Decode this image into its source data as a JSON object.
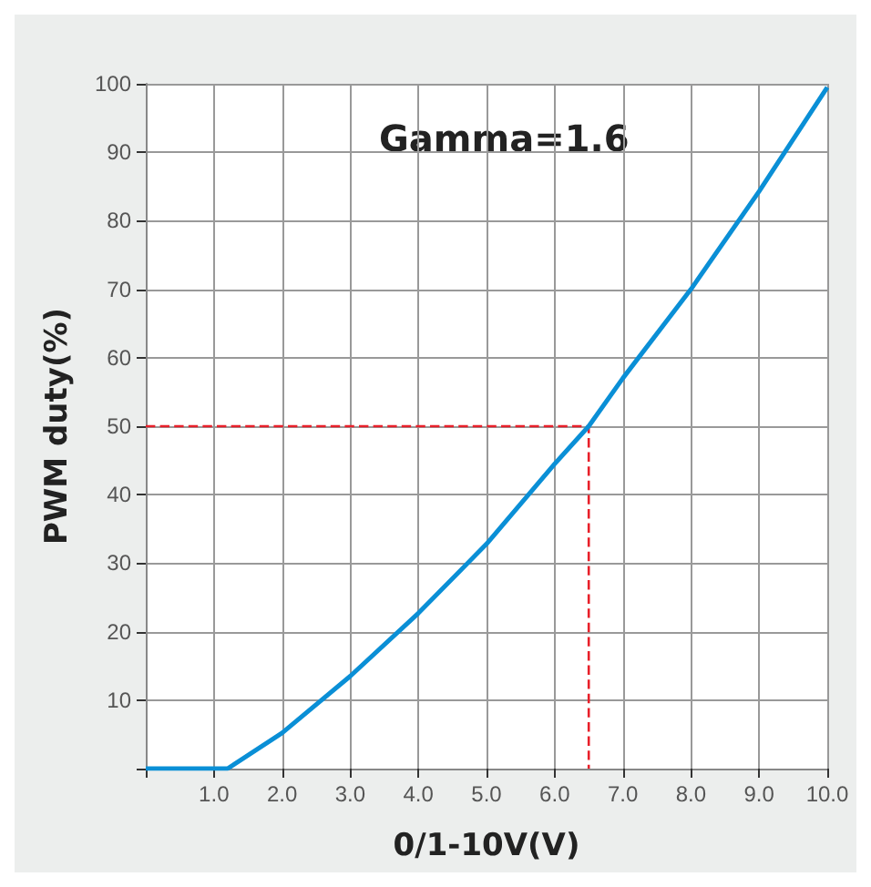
{
  "chart_data": {
    "type": "line",
    "xlabel": "0/1-10V(V)",
    "ylabel": "PWM duty(%)",
    "annotations": [
      "Gamma=1.6"
    ],
    "series": [
      {
        "color": "#0a8fd6",
        "x": [
          0,
          1.2,
          2,
          3,
          4,
          5,
          6,
          6.5,
          7,
          8,
          9,
          10
        ],
        "values": [
          0,
          0,
          5.2,
          13.5,
          22.7,
          32.8,
          44.5,
          50,
          57,
          70,
          84.3,
          99.5
        ]
      },
      {
        "color": "#e8202a",
        "line_style": "dashed",
        "x": [
          0,
          6.5,
          6.5
        ],
        "values": [
          50,
          50,
          0
        ]
      }
    ],
    "xlim": [
      0,
      10
    ],
    "ylim": [
      0,
      100
    ],
    "xticks": [
      {
        "value": 0,
        "label": null
      },
      {
        "value": 1,
        "label": "1.0"
      },
      {
        "value": 2,
        "label": "2.0"
      },
      {
        "value": 3,
        "label": "3.0"
      },
      {
        "value": 4,
        "label": "4.0"
      },
      {
        "value": 5,
        "label": "5.0"
      },
      {
        "value": 6,
        "label": "6.0"
      },
      {
        "value": 7,
        "label": "7.0"
      },
      {
        "value": 8,
        "label": "8.0"
      },
      {
        "value": 9,
        "label": "9.0"
      },
      {
        "value": 10,
        "label": "10.0"
      }
    ],
    "yticks": [
      {
        "value": 0,
        "label": null
      },
      10,
      20,
      30,
      40,
      50,
      60,
      70,
      80,
      90,
      100
    ],
    "grid": true,
    "line_style": "solid",
    "marker": "none"
  }
}
